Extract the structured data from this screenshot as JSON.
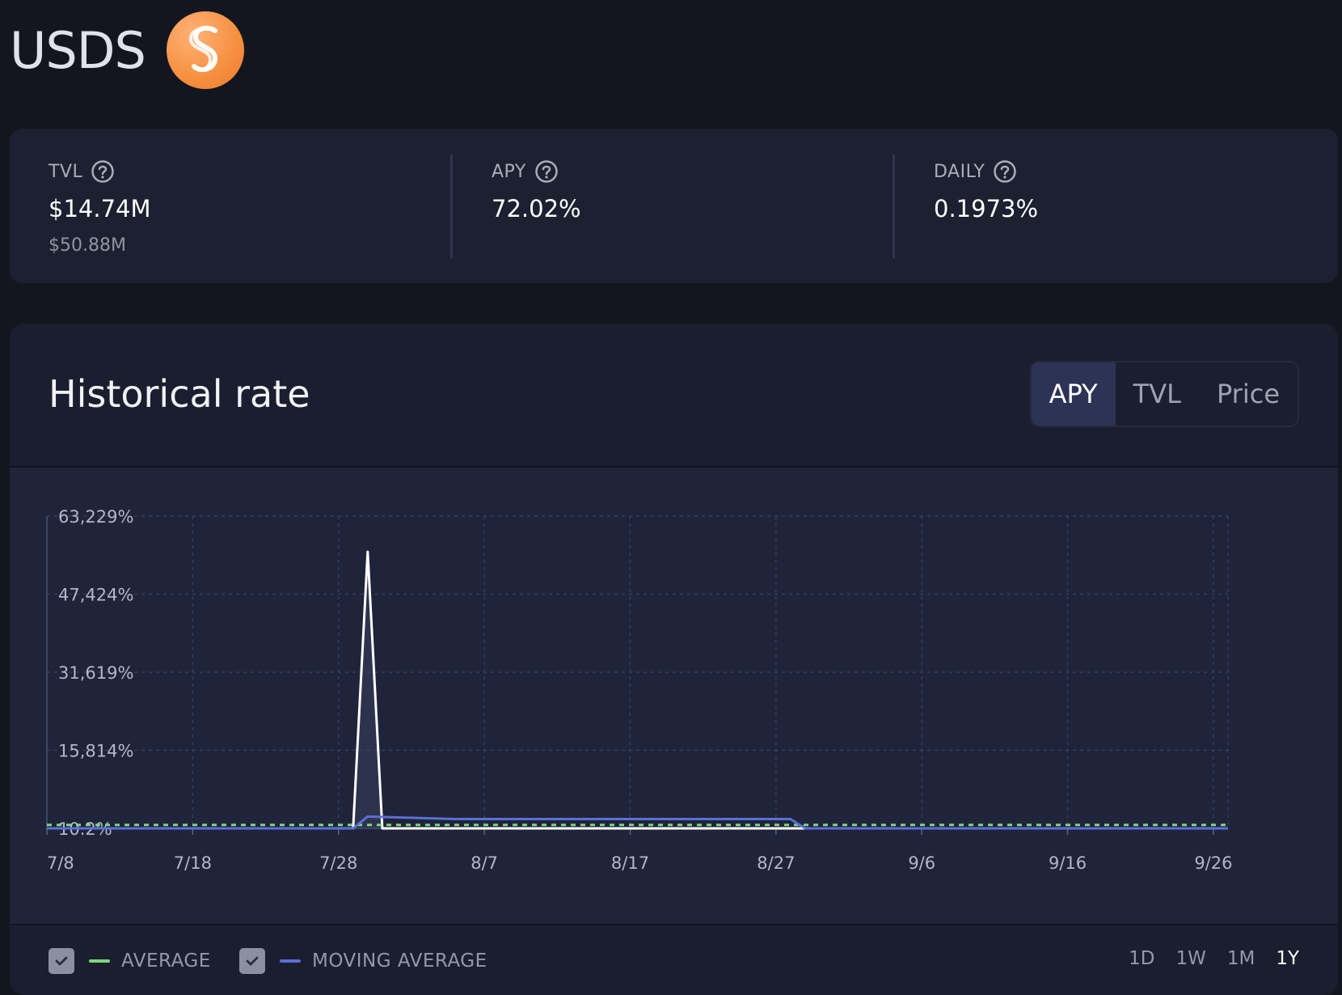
{
  "header": {
    "token_name": "USDS",
    "logo_icon": "sky-s-logo-icon"
  },
  "stats": {
    "tvl": {
      "label": "TVL",
      "value": "$14.74M",
      "sub": "$50.88M"
    },
    "apy": {
      "label": "APY",
      "value": "72.02%"
    },
    "daily": {
      "label": "DAILY",
      "value": "0.1973%"
    }
  },
  "chart_card": {
    "title": "Historical rate",
    "tabs": [
      "APY",
      "TVL",
      "Price"
    ],
    "active_tab": "APY"
  },
  "legend": {
    "average": {
      "label": "AVERAGE",
      "color": "#7dd87d",
      "checked": true
    },
    "moving_average": {
      "label": "MOVING AVERAGE",
      "color": "#5b6fd6",
      "checked": true
    }
  },
  "ranges": [
    "1D",
    "1W",
    "1M",
    "1Y"
  ],
  "active_range": "1Y",
  "chart_data": {
    "type": "line",
    "title": "",
    "xlabel": "",
    "ylabel": "",
    "x_tick_labels": [
      "7/8",
      "7/18",
      "7/28",
      "8/7",
      "8/17",
      "8/27",
      "9/6",
      "9/16",
      "9/26"
    ],
    "y_tick_labels": [
      "10.2%",
      "15,814%",
      "31,619%",
      "47,424%",
      "63,229%"
    ],
    "ylim": [
      10.2,
      63229
    ],
    "x_range_days": [
      0,
      81
    ],
    "grid": true,
    "series": [
      {
        "name": "APY",
        "color": "#ffffff",
        "points": [
          [
            0,
            10.2
          ],
          [
            20,
            10.2
          ],
          [
            21,
            10.2
          ],
          [
            22,
            56000
          ],
          [
            23,
            10.2
          ],
          [
            80,
            10.2
          ],
          [
            81,
            10.2
          ]
        ]
      },
      {
        "name": "AVERAGE",
        "color": "#7dd87d",
        "dashed": true,
        "points": [
          [
            0,
            700
          ],
          [
            81,
            700
          ]
        ]
      },
      {
        "name": "MOVING AVERAGE",
        "color": "#5b6fd6",
        "points": [
          [
            0,
            10.2
          ],
          [
            21,
            10.2
          ],
          [
            22,
            2400
          ],
          [
            28,
            1900
          ],
          [
            51,
            1900
          ],
          [
            52,
            10.2
          ],
          [
            81,
            10.2
          ]
        ]
      }
    ]
  }
}
